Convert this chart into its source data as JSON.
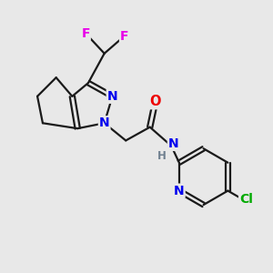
{
  "background_color": "#e8e8e8",
  "bond_color": "#1a1a1a",
  "atom_colors": {
    "F": "#e800e8",
    "N": "#0000ee",
    "O": "#ee0000",
    "Cl": "#00aa00",
    "H": "#708090",
    "C": "#1a1a1a"
  },
  "figsize": [
    3.0,
    3.0
  ],
  "dpi": 100,
  "lw": 1.6
}
